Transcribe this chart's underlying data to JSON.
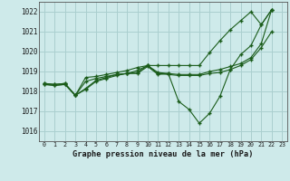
{
  "title": "Graphe pression niveau de la mer (hPa)",
  "bg_color": "#ceeaea",
  "grid_color": "#aacfcf",
  "line_color": "#1a5c1a",
  "xlim": [
    -0.5,
    23.5
  ],
  "ylim": [
    1015.5,
    1022.5
  ],
  "yticks": [
    1016,
    1017,
    1018,
    1019,
    1020,
    1021,
    1022
  ],
  "xticks": [
    0,
    1,
    2,
    3,
    4,
    5,
    6,
    7,
    8,
    9,
    10,
    11,
    12,
    13,
    14,
    15,
    16,
    17,
    18,
    19,
    20,
    21,
    22,
    23
  ],
  "lines": [
    {
      "x": [
        0,
        1,
        2,
        3,
        4,
        5,
        6,
        7,
        8,
        9,
        10,
        11,
        12,
        13,
        14,
        15,
        16,
        17,
        18,
        19,
        20,
        21,
        22
      ],
      "y": [
        1018.35,
        1018.3,
        1018.35,
        1017.8,
        1018.7,
        1018.75,
        1018.85,
        1018.95,
        1019.05,
        1019.2,
        1019.3,
        1019.3,
        1019.3,
        1019.3,
        1019.3,
        1019.3,
        1019.95,
        1020.55,
        1021.1,
        1021.55,
        1022.0,
        1021.35,
        1022.1
      ]
    },
    {
      "x": [
        0,
        1,
        2,
        3,
        4,
        5,
        6,
        7,
        8,
        9,
        10,
        11,
        12,
        13,
        14,
        15,
        16,
        17,
        18,
        19,
        20,
        21,
        22
      ],
      "y": [
        1018.35,
        1018.3,
        1018.35,
        1017.8,
        1018.5,
        1018.65,
        1018.75,
        1018.85,
        1018.9,
        1018.9,
        1019.25,
        1018.85,
        1018.9,
        1017.5,
        1017.1,
        1016.4,
        1016.9,
        1017.75,
        1019.1,
        1019.85,
        1020.3,
        1021.35,
        1022.1
      ]
    },
    {
      "x": [
        0,
        1,
        2,
        3,
        4,
        5,
        6,
        7,
        8,
        9,
        10,
        11,
        12,
        13,
        14,
        15,
        16,
        17,
        18,
        19,
        20,
        21,
        22
      ],
      "y": [
        1018.4,
        1018.35,
        1018.4,
        1017.8,
        1018.15,
        1018.55,
        1018.7,
        1018.85,
        1018.9,
        1019.05,
        1019.3,
        1018.95,
        1018.9,
        1018.85,
        1018.85,
        1018.85,
        1019.0,
        1019.1,
        1019.25,
        1019.4,
        1019.7,
        1020.4,
        1022.1
      ]
    },
    {
      "x": [
        0,
        1,
        2,
        3,
        4,
        5,
        6,
        7,
        8,
        9,
        10,
        11,
        12,
        13,
        14,
        15,
        16,
        17,
        18,
        19,
        20,
        21,
        22
      ],
      "y": [
        1018.4,
        1018.35,
        1018.4,
        1017.8,
        1018.1,
        1018.5,
        1018.65,
        1018.8,
        1018.9,
        1018.95,
        1019.3,
        1018.9,
        1018.85,
        1018.8,
        1018.8,
        1018.8,
        1018.9,
        1018.95,
        1019.1,
        1019.3,
        1019.6,
        1020.2,
        1021.0
      ]
    }
  ]
}
